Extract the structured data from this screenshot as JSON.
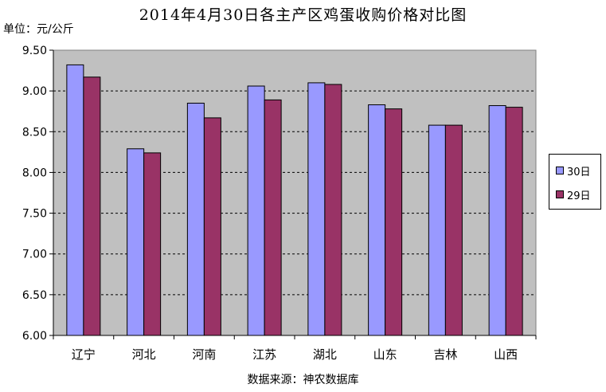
{
  "chart_data": {
    "type": "bar",
    "title": "2014年4月30日各主产区鸡蛋收购价格对比图",
    "unit_label": "单位：元/公斤",
    "source": "数据来源：神农数据库",
    "categories": [
      "辽宁",
      "河北",
      "河南",
      "江苏",
      "湖北",
      "山东",
      "吉林",
      "山西"
    ],
    "series": [
      {
        "name": "30日",
        "color": "#9999ff",
        "values": [
          9.32,
          8.29,
          8.85,
          9.06,
          9.1,
          8.83,
          8.58,
          8.82
        ]
      },
      {
        "name": "29日",
        "color": "#993366",
        "values": [
          9.17,
          8.24,
          8.67,
          8.89,
          9.08,
          8.78,
          8.58,
          8.8
        ]
      }
    ],
    "ylim": [
      6.0,
      9.5
    ],
    "yticks": [
      "6.00",
      "6.50",
      "7.00",
      "7.50",
      "8.00",
      "8.50",
      "9.00",
      "9.50"
    ],
    "grid": true,
    "plot_background": "#c0c0c0",
    "legend_position": "right"
  }
}
